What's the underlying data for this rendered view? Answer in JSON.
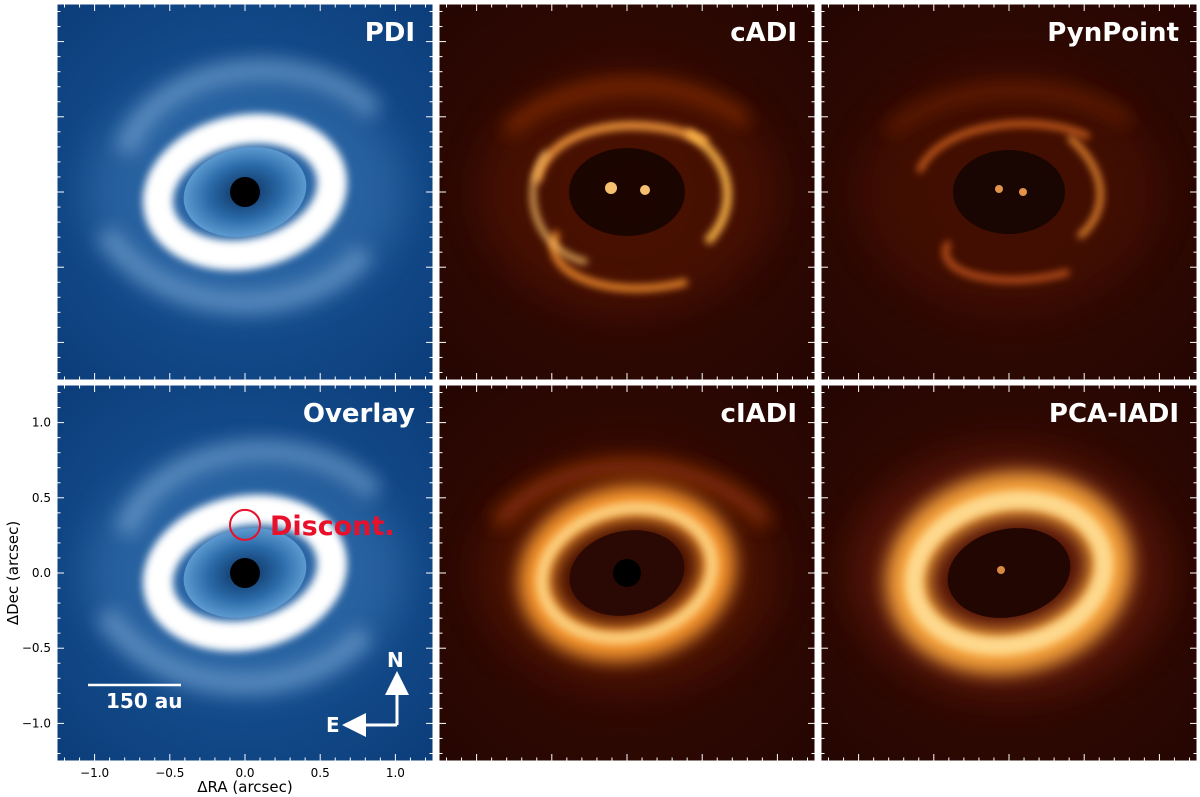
{
  "figure": {
    "panels": [
      {
        "id": "pdi",
        "title": "PDI",
        "colormap": "blue"
      },
      {
        "id": "cadi",
        "title": "cADI",
        "colormap": "hot"
      },
      {
        "id": "pynpoint",
        "title": "PynPoint",
        "colormap": "hot"
      },
      {
        "id": "overlay",
        "title": "Overlay",
        "colormap": "blue"
      },
      {
        "id": "cladi",
        "title": "cIADI",
        "colormap": "hot"
      },
      {
        "id": "pcaladi",
        "title": "PCA-IADI",
        "colormap": "hot"
      }
    ],
    "annotations": {
      "discontinuity_label": "Discont.",
      "scale_bar_label": "150 au",
      "north_label": "N",
      "east_label": "E",
      "highlight_color": "#e8102a"
    },
    "colors": {
      "blue_background": "#0d3f7e",
      "hot_background": "#2a0702"
    }
  },
  "chart_data": {
    "type": "image",
    "xlabel": "ΔRA (arcsec)",
    "ylabel": "ΔDec (arcsec)",
    "xlim": [
      -1.25,
      1.25
    ],
    "ylim": [
      -1.25,
      1.25
    ],
    "xticks": [
      -1.0,
      -0.5,
      0.0,
      0.5,
      1.0
    ],
    "xtick_labels": [
      "−1.0",
      "−0.5",
      "0.0",
      "0.5",
      "1.0"
    ],
    "yticks": [
      1.0,
      0.5,
      0.0,
      -0.5,
      -1.0
    ],
    "ytick_labels": [
      "1.0",
      "0.5",
      "0.0",
      "−0.5",
      "−1.0"
    ],
    "discontinuity_center": [
      0.0,
      0.32
    ],
    "discontinuity_radius": 0.1
  }
}
